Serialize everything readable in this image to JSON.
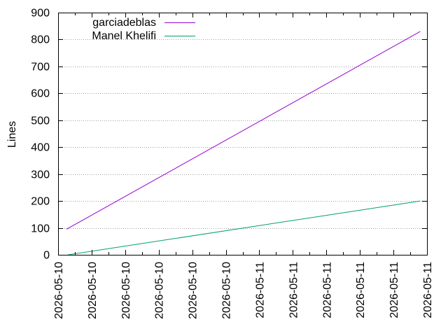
{
  "chart_data": {
    "type": "line",
    "title": "",
    "xlabel": "",
    "ylabel": "Lines",
    "ylim": [
      0,
      900
    ],
    "yticks": [
      0,
      100,
      200,
      300,
      400,
      500,
      600,
      700,
      800,
      900
    ],
    "xticks": [
      "2026-05-10",
      "2026-05-10",
      "2026-05-10",
      "2026-05-10",
      "2026-05-10",
      "2026-05-10",
      "2026-05-11",
      "2026-05-11",
      "2026-05-11",
      "2026-05-11",
      "2026-05-11",
      "2026-05-11"
    ],
    "grid": "horizontal dotted",
    "legend_position": "top-left",
    "series": [
      {
        "name": "garciadeblas",
        "color": "#9400d3",
        "start": {
          "tick": 0.25,
          "value": 95
        },
        "end": {
          "tick": 10.8,
          "value": 830
        }
      },
      {
        "name": "Manel Khelifi",
        "color": "#009e73",
        "start": {
          "tick": 0.3,
          "value": 0
        },
        "end": {
          "tick": 10.8,
          "value": 200
        }
      }
    ]
  }
}
